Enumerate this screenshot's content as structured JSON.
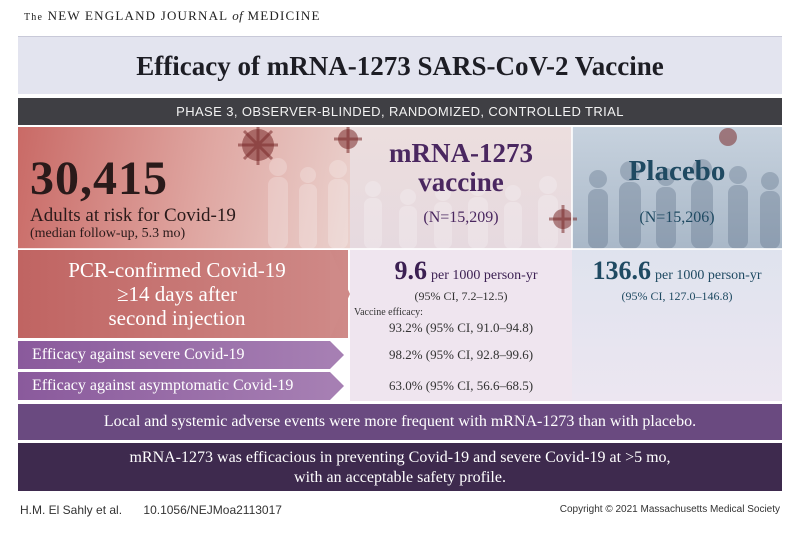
{
  "journal": {
    "prefix": "The",
    "name_part1": "NEW ENGLAND JOURNAL",
    "name_of": "of",
    "name_part2": "MEDICINE"
  },
  "title": "Efficacy of mRNA-1273 SARS-CoV-2 Vaccine",
  "trial_design": "PHASE 3, OBSERVER-BLINDED, RANDOMIZED, CONTROLLED TRIAL",
  "enrollment": {
    "count": "30,415",
    "label": "Adults at risk for Covid-19",
    "followup": "(median follow-up, 5.3 mo)"
  },
  "vaccine_arm": {
    "name_line1": "mRNA-1273",
    "name_line2": "vaccine",
    "n": "(N=15,209)",
    "rate": "9.6",
    "rate_unit": "per 1000 person-yr",
    "rate_ci": "(95% CI, 7.2–12.5)",
    "efficacy_label": "Vaccine efficacy:",
    "efficacy": "93.2% (95% CI, 91.0–94.8)"
  },
  "placebo_arm": {
    "name": "Placebo",
    "n": "(N=15,206)",
    "rate": "136.6",
    "rate_unit": "per 1000 person-yr",
    "rate_ci": "(95% CI, 127.0–146.8)"
  },
  "primary_endpoint": {
    "line1": "PCR-confirmed Covid-19",
    "line2": "≥14 days after",
    "line3": "second injection"
  },
  "secondary": [
    {
      "label": "Efficacy against severe Covid-19",
      "value": "98.2% (95% CI, 92.8–99.6)"
    },
    {
      "label": "Efficacy against asymptomatic Covid-19",
      "value": "63.0% (95% CI, 56.6–68.5)"
    }
  ],
  "adverse_events": "Local and systemic adverse events were more frequent with mRNA-1273 than with placebo.",
  "conclusion": {
    "line1": "mRNA-1273 was efficacious in preventing Covid-19 and severe Covid-19 at >5 mo,",
    "line2": "with an acceptable safety profile."
  },
  "footer": {
    "authors": "H.M. El Sahly et al.",
    "doi": "10.1056/NEJMoa2113017",
    "copyright": "Copyright © 2021 Massachusetts Medical Society"
  },
  "colors": {
    "vaccine_purple": "#4a2760",
    "placebo_blue": "#1f4a62",
    "header_dark": "#3f3f44",
    "banner_purple": "#6a4a80",
    "conclusion_purple": "#3e2a4e",
    "enrollment_red": "#c96a66"
  }
}
